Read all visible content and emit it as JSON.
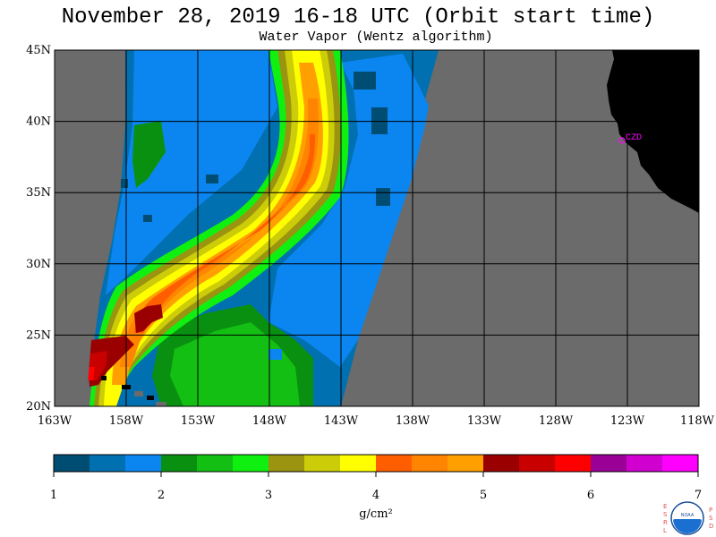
{
  "header": {
    "title": "November 28, 2019  16-18 UTC  (Orbit start time)",
    "subtitle": "Water Vapor (Wentz algorithm)"
  },
  "map": {
    "lat_labels": [
      "45N",
      "40N",
      "35N",
      "30N",
      "25N",
      "20N"
    ],
    "lat_values": [
      45,
      40,
      35,
      30,
      25,
      20
    ],
    "lon_labels": [
      "163W",
      "158W",
      "153W",
      "148W",
      "143W",
      "138W",
      "133W",
      "128W",
      "123W",
      "118W"
    ],
    "lon_values": [
      -163,
      -158,
      -153,
      -148,
      -143,
      -138,
      -133,
      -128,
      -123,
      -118
    ],
    "station_label": "CZD",
    "station_color": "#ff00ff",
    "land_color": "#000000",
    "no_data_color": "#6b6b6b",
    "grid_color": "#000000"
  },
  "colorbar": {
    "tick_labels": [
      "1",
      "2",
      "3",
      "4",
      "5",
      "6",
      "7"
    ],
    "unit_label": "g/cm²",
    "colors": [
      "#004d73",
      "#0070b0",
      "#0b86f0",
      "#0a9010",
      "#12bf12",
      "#10f010",
      "#9a9410",
      "#cccc08",
      "#ffff00",
      "#ff5e00",
      "#ff8400",
      "#ffa000",
      "#9a0000",
      "#c80000",
      "#ff0000",
      "#9b0096",
      "#d000d0",
      "#ff00ff"
    ]
  },
  "logo": {
    "left_letters": "ESRL",
    "right_letters": "PSD",
    "center_text": "NOAA"
  }
}
